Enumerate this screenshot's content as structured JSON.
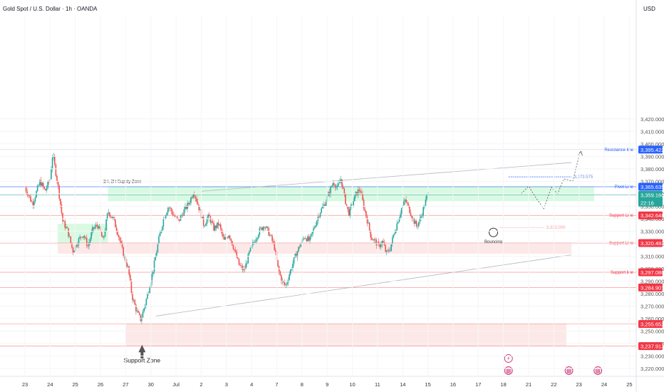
{
  "header": {
    "symbol": "Gold Spot / U.S. Dollar · 1h · OANDA",
    "currency": "USD"
  },
  "colors": {
    "up": "#26a69a",
    "down": "#ef5350",
    "supply": "#b9f6ca",
    "support_zone": "#fbd5d5",
    "blue": "#2962ff",
    "red_line": "#f77c7c",
    "teal": "#26a69a"
  },
  "chart_data": {
    "type": "candlestick",
    "symbol": "XAU/USD",
    "timeframe": "1h",
    "ylim": [
      3213,
      3432
    ],
    "y_ticks": [
      3220,
      3230,
      3240,
      3250,
      3260,
      3270,
      3280,
      3290,
      3300,
      3310,
      3320,
      3330,
      3340,
      3350,
      3360,
      3370,
      3380,
      3390,
      3400,
      3410,
      3420
    ],
    "y_tick_labels": [
      "3,220.000",
      "3,230.000",
      "3,240.000",
      "3,250.000",
      "3,260.000",
      "3,270.000",
      "3,280.000",
      "3,290.000",
      "3,300.000",
      "3,310.000",
      "3,320.000",
      "3,330.000",
      "3,340.000",
      "3,350.000",
      "3,360.000",
      "3,370.000",
      "3,380.000",
      "3,390.000",
      "3,400.000",
      "3,410.000",
      "3,420.000"
    ],
    "x_ticks": [
      {
        "label": "23",
        "day": 0
      },
      {
        "label": "24",
        "day": 1
      },
      {
        "label": "25",
        "day": 2
      },
      {
        "label": "26",
        "day": 3
      },
      {
        "label": "27",
        "day": 4
      },
      {
        "label": "30",
        "day": 5
      },
      {
        "label": "Jul",
        "day": 6
      },
      {
        "label": "2",
        "day": 7
      },
      {
        "label": "3",
        "day": 8
      },
      {
        "label": "4",
        "day": 9
      },
      {
        "label": "7",
        "day": 10
      },
      {
        "label": "8",
        "day": 11
      },
      {
        "label": "9",
        "day": 12
      },
      {
        "label": "10",
        "day": 13
      },
      {
        "label": "11",
        "day": 14
      },
      {
        "label": "14",
        "day": 15
      },
      {
        "label": "15",
        "day": 16
      },
      {
        "label": "16",
        "day": 17
      },
      {
        "label": "17",
        "day": 18
      },
      {
        "label": "18",
        "day": 19
      },
      {
        "label": "21",
        "day": 20
      },
      {
        "label": "22",
        "day": 21
      },
      {
        "label": "23",
        "day": 22
      },
      {
        "label": "24",
        "day": 23
      },
      {
        "label": "25",
        "day": 24
      }
    ],
    "close_path": [
      [
        0,
        3365
      ],
      [
        0.3,
        3352
      ],
      [
        0.6,
        3370
      ],
      [
        0.8,
        3362
      ],
      [
        1,
        3372
      ],
      [
        1.1,
        3392
      ],
      [
        1.3,
        3368
      ],
      [
        1.5,
        3338
      ],
      [
        1.7,
        3330
      ],
      [
        1.9,
        3314
      ],
      [
        2.1,
        3322
      ],
      [
        2.3,
        3328
      ],
      [
        2.5,
        3318
      ],
      [
        2.7,
        3332
      ],
      [
        2.9,
        3335
      ],
      [
        3.1,
        3322
      ],
      [
        3.3,
        3346
      ],
      [
        3.5,
        3340
      ],
      [
        3.7,
        3328
      ],
      [
        3.9,
        3312
      ],
      [
        4.1,
        3300
      ],
      [
        4.25,
        3278
      ],
      [
        4.45,
        3265
      ],
      [
        4.6,
        3259
      ],
      [
        4.75,
        3270
      ],
      [
        4.9,
        3282
      ],
      [
        5.1,
        3300
      ],
      [
        5.3,
        3322
      ],
      [
        5.5,
        3340
      ],
      [
        5.7,
        3350
      ],
      [
        5.9,
        3343
      ],
      [
        6.1,
        3338
      ],
      [
        6.3,
        3346
      ],
      [
        6.5,
        3352
      ],
      [
        6.7,
        3362
      ],
      [
        6.8,
        3356
      ],
      [
        6.95,
        3346
      ],
      [
        7.1,
        3335
      ],
      [
        7.3,
        3342
      ],
      [
        7.5,
        3332
      ],
      [
        7.7,
        3336
      ],
      [
        7.9,
        3322
      ],
      [
        8.1,
        3328
      ],
      [
        8.3,
        3316
      ],
      [
        8.5,
        3303
      ],
      [
        8.7,
        3298
      ],
      [
        8.9,
        3312
      ],
      [
        9.1,
        3322
      ],
      [
        9.3,
        3330
      ],
      [
        9.5,
        3335
      ],
      [
        9.7,
        3328
      ],
      [
        9.9,
        3318
      ],
      [
        10.05,
        3300
      ],
      [
        10.2,
        3290
      ],
      [
        10.35,
        3286
      ],
      [
        10.5,
        3296
      ],
      [
        10.7,
        3308
      ],
      [
        10.9,
        3318
      ],
      [
        11.1,
        3326
      ],
      [
        11.3,
        3322
      ],
      [
        11.5,
        3334
      ],
      [
        11.7,
        3345
      ],
      [
        11.9,
        3352
      ],
      [
        12.1,
        3362
      ],
      [
        12.25,
        3370
      ],
      [
        12.4,
        3364
      ],
      [
        12.55,
        3372
      ],
      [
        12.7,
        3356
      ],
      [
        12.85,
        3344
      ],
      [
        13,
        3352
      ],
      [
        13.15,
        3360
      ],
      [
        13.3,
        3364
      ],
      [
        13.45,
        3350
      ],
      [
        13.6,
        3338
      ],
      [
        13.75,
        3325
      ],
      [
        13.9,
        3322
      ],
      [
        14.05,
        3318
      ],
      [
        14.2,
        3322
      ],
      [
        14.35,
        3312
      ],
      [
        14.5,
        3316
      ],
      [
        14.65,
        3328
      ],
      [
        14.8,
        3338
      ],
      [
        14.95,
        3348
      ],
      [
        15.1,
        3355
      ],
      [
        15.25,
        3348
      ],
      [
        15.4,
        3340
      ],
      [
        15.55,
        3334
      ],
      [
        15.7,
        3340
      ],
      [
        15.85,
        3350
      ],
      [
        16,
        3360
      ]
    ],
    "zones": [
      {
        "name": "1H, 2H Supply Zone",
        "top": 3366,
        "bottom": 3354,
        "from_day": 3.3,
        "to_day": 22.6,
        "color": "supply"
      },
      {
        "name": "",
        "top": 3336,
        "bottom": 3320,
        "from_day": 1.3,
        "to_day": 3.3,
        "color": "supply"
      },
      {
        "name": "",
        "top": 3321,
        "bottom": 3312,
        "from_day": 1.3,
        "to_day": 21.7,
        "color": "support_zone"
      },
      {
        "name": "Support Zone",
        "top": 3256,
        "bottom": 3238,
        "from_day": 4,
        "to_day": 21.5,
        "color": "support_zone"
      }
    ],
    "levels": [
      {
        "label": "Resistance line",
        "price": 3395.422,
        "price_label": "3,395.422",
        "line_color": "#c5c8d6",
        "tag_color": "#2962ff",
        "label_color": "#2962ff"
      },
      {
        "label": "Pivot Line",
        "price": 3365.635,
        "price_label": "3,365.635",
        "line_color": "#2962ff",
        "tag_color": "#2962ff",
        "label_color": "#2962ff"
      },
      {
        "label": "",
        "price": 3359.16,
        "price_label": "3,359.160",
        "sub_label": "22:16",
        "line_color": "#26a69a",
        "tag_color": "#26a69a",
        "label_color": "#26a69a"
      },
      {
        "label": "Support Line",
        "price": 3342.648,
        "price_label": "3,342.648",
        "line_color": "#f77c7c",
        "tag_color": "#f23645",
        "label_color": "#f23645"
      },
      {
        "label": "Support Line",
        "price": 3320.483,
        "price_label": "3,320.483",
        "line_color": "#f77c7c",
        "tag_color": "#f23645",
        "label_color": "#f23645"
      },
      {
        "label": "Support line",
        "price": 3297.08,
        "price_label": "3,297.080",
        "line_color": "#f77c7c",
        "tag_color": "#f23645",
        "label_color": "#f23645"
      },
      {
        "label": "",
        "price": 3284.901,
        "price_label": "3,284.901",
        "line_color": "#f77c7c",
        "tag_color": "#f23645",
        "label_color": "#f23645"
      },
      {
        "label": "",
        "price": 3255.652,
        "price_label": "3,255.652",
        "line_color": "#f77c7c",
        "tag_color": "#f23645",
        "label_color": "#f23645"
      },
      {
        "label": "",
        "price": 3237.913,
        "price_label": "3,237.913",
        "line_color": "#f77c7c",
        "tag_color": "#f23645",
        "label_color": "#f23645"
      }
    ],
    "trendlines": [
      {
        "name": "upper channel",
        "points": [
          [
            7,
            3362
          ],
          [
            21.7,
            3385
          ]
        ]
      },
      {
        "name": "lower channel",
        "points": [
          [
            5.2,
            3262
          ],
          [
            21.7,
            3311
          ]
        ]
      }
    ],
    "annotations": {
      "supply_zone_label": "1H, 2H Supply Zone",
      "support_zone_label": "Support Zone",
      "bouncing_label": "Bouncing",
      "target_upper": {
        "label": "3,373.575",
        "price": 3373.575
      },
      "target_lower": {
        "label": "3,333.000",
        "price": 3333.0
      }
    },
    "projection": [
      [
        19.7,
        3360
      ],
      [
        20.0,
        3366
      ],
      [
        20.35,
        3355
      ],
      [
        20.6,
        3348
      ],
      [
        20.9,
        3365
      ],
      [
        21.15,
        3360
      ],
      [
        21.4,
        3372
      ],
      [
        21.75,
        3370
      ]
    ],
    "projection_breakout": [
      [
        21.75,
        3370
      ],
      [
        22.05,
        3394
      ]
    ]
  }
}
